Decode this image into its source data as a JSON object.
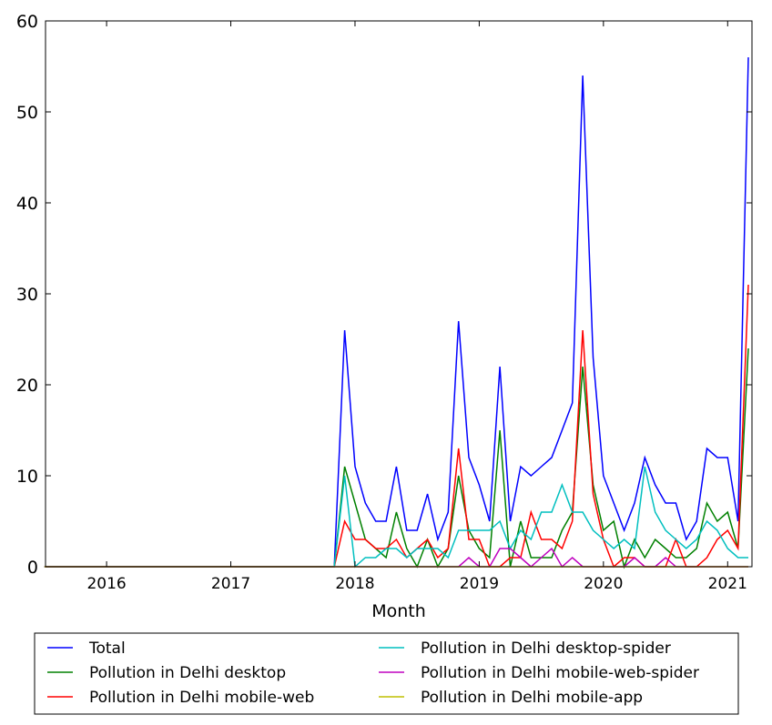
{
  "chart_data": {
    "type": "line",
    "title": "",
    "xlabel": "Month",
    "ylabel": "",
    "x_start": "2015-07",
    "x_unit": "month",
    "xlim_months_from_start": [
      0.1,
      68.35
    ],
    "ylim": [
      0,
      60
    ],
    "yticks": [
      0,
      10,
      20,
      30,
      40,
      50,
      60
    ],
    "xticks": [
      {
        "label": "2016",
        "month_index": 6
      },
      {
        "label": "2017",
        "month_index": 18
      },
      {
        "label": "2018",
        "month_index": 30
      },
      {
        "label": "2019",
        "month_index": 42
      },
      {
        "label": "2020",
        "month_index": 54
      },
      {
        "label": "2021",
        "month_index": 66
      }
    ],
    "grid": false,
    "legend_position": "below",
    "series": [
      {
        "name": "Total",
        "color": "#0000ff",
        "values": [
          0,
          0,
          0,
          0,
          0,
          0,
          0,
          0,
          0,
          0,
          0,
          0,
          0,
          0,
          0,
          0,
          0,
          0,
          0,
          0,
          0,
          0,
          0,
          0,
          0,
          0,
          0,
          0,
          0,
          26,
          11,
          7,
          5,
          5,
          11,
          4,
          4,
          8,
          3,
          6,
          27,
          12,
          9,
          5,
          22,
          5,
          11,
          10,
          11,
          12,
          15,
          18,
          54,
          23,
          10,
          7,
          4,
          7,
          12,
          9,
          7,
          7,
          3,
          5,
          13,
          12,
          12,
          5,
          56
        ]
      },
      {
        "name": "Pollution in Delhi desktop",
        "color": "#008000",
        "values": [
          0,
          0,
          0,
          0,
          0,
          0,
          0,
          0,
          0,
          0,
          0,
          0,
          0,
          0,
          0,
          0,
          0,
          0,
          0,
          0,
          0,
          0,
          0,
          0,
          0,
          0,
          0,
          0,
          0,
          11,
          7,
          3,
          2,
          1,
          6,
          2,
          0,
          3,
          0,
          2,
          10,
          4,
          2,
          1,
          15,
          0,
          5,
          1,
          1,
          1,
          4,
          6,
          22,
          9,
          4,
          5,
          0,
          3,
          1,
          3,
          2,
          1,
          1,
          2,
          7,
          5,
          6,
          2,
          24
        ]
      },
      {
        "name": "Pollution in Delhi mobile-web",
        "color": "#ff0000",
        "values": [
          0,
          0,
          0,
          0,
          0,
          0,
          0,
          0,
          0,
          0,
          0,
          0,
          0,
          0,
          0,
          0,
          0,
          0,
          0,
          0,
          0,
          0,
          0,
          0,
          0,
          0,
          0,
          0,
          0,
          5,
          3,
          3,
          2,
          2,
          3,
          1,
          2,
          3,
          1,
          2,
          13,
          3,
          3,
          0,
          0,
          1,
          1,
          6,
          3,
          3,
          2,
          5,
          26,
          8,
          3,
          0,
          1,
          1,
          0,
          0,
          0,
          3,
          0,
          0,
          1,
          3,
          4,
          2,
          31
        ]
      },
      {
        "name": "Pollution in Delhi desktop-spider",
        "color": "#00bfbf",
        "values": [
          0,
          0,
          0,
          0,
          0,
          0,
          0,
          0,
          0,
          0,
          0,
          0,
          0,
          0,
          0,
          0,
          0,
          0,
          0,
          0,
          0,
          0,
          0,
          0,
          0,
          0,
          0,
          0,
          0,
          10,
          0,
          1,
          1,
          2,
          2,
          1,
          2,
          2,
          2,
          1,
          4,
          4,
          4,
          4,
          5,
          2,
          4,
          3,
          6,
          6,
          9,
          6,
          6,
          4,
          3,
          2,
          3,
          2,
          11,
          6,
          4,
          3,
          2,
          3,
          5,
          4,
          2,
          1,
          1
        ]
      },
      {
        "name": "Pollution in Delhi mobile-web-spider",
        "color": "#bf00bf",
        "values": [
          0,
          0,
          0,
          0,
          0,
          0,
          0,
          0,
          0,
          0,
          0,
          0,
          0,
          0,
          0,
          0,
          0,
          0,
          0,
          0,
          0,
          0,
          0,
          0,
          0,
          0,
          0,
          0,
          0,
          0,
          0,
          0,
          0,
          0,
          0,
          0,
          0,
          0,
          0,
          0,
          0,
          1,
          0,
          0,
          2,
          2,
          1,
          0,
          1,
          2,
          0,
          1,
          0,
          0,
          0,
          0,
          0,
          1,
          0,
          0,
          1,
          0,
          0,
          0,
          0,
          0,
          0,
          0,
          0
        ]
      },
      {
        "name": "Pollution in Delhi mobile-app",
        "color": "#bfbf00",
        "values": [
          0,
          0,
          0,
          0,
          0,
          0,
          0,
          0,
          0,
          0,
          0,
          0,
          0,
          0,
          0,
          0,
          0,
          0,
          0,
          0,
          0,
          0,
          0,
          0,
          0,
          0,
          0,
          0,
          0,
          0,
          0,
          0,
          0,
          0,
          0,
          0,
          0,
          0,
          0,
          0,
          0,
          0,
          0,
          0,
          0,
          0,
          0,
          0,
          0,
          0,
          0,
          0,
          0,
          0,
          0,
          0,
          0,
          0,
          0,
          0,
          0,
          0,
          0,
          0,
          0,
          0,
          0,
          0,
          0
        ]
      }
    ]
  }
}
